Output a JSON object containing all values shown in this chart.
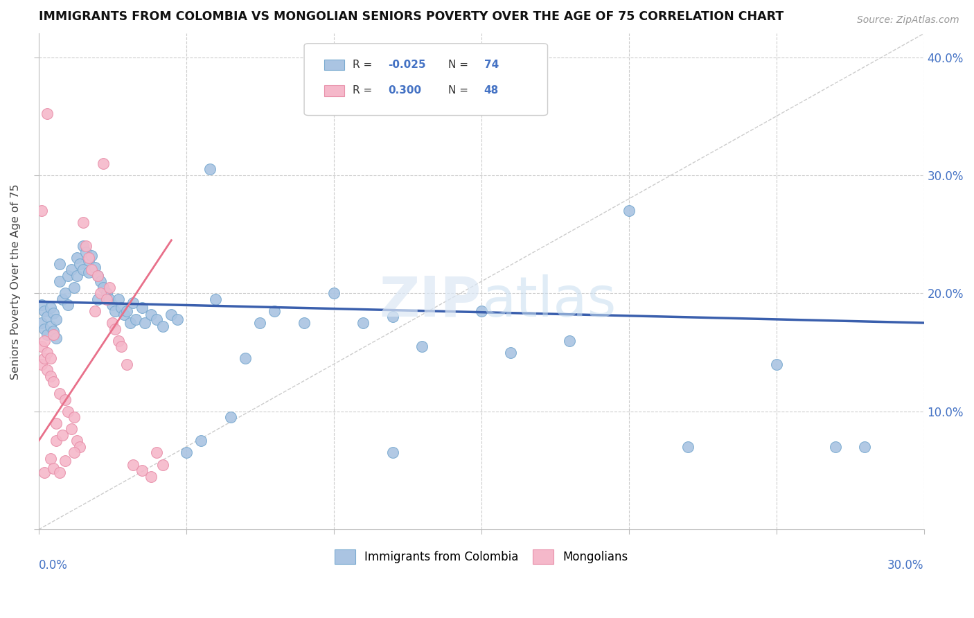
{
  "title": "IMMIGRANTS FROM COLOMBIA VS MONGOLIAN SENIORS POVERTY OVER THE AGE OF 75 CORRELATION CHART",
  "source": "Source: ZipAtlas.com",
  "ylabel": "Seniors Poverty Over the Age of 75",
  "legend1_label": "Immigrants from Colombia",
  "legend2_label": "Mongolians",
  "color_colombia": "#aac4e2",
  "color_mongolia": "#f5b8ca",
  "color_colombia_edge": "#7aaad0",
  "color_mongolia_edge": "#e890aa",
  "color_colombia_line": "#3a5fad",
  "color_mongolia_line": "#e8708a",
  "xlim": [
    0.0,
    0.3
  ],
  "ylim": [
    0.0,
    0.42
  ],
  "colombia_x": [
    0.001,
    0.001,
    0.002,
    0.002,
    0.003,
    0.003,
    0.004,
    0.004,
    0.005,
    0.005,
    0.006,
    0.006,
    0.007,
    0.007,
    0.008,
    0.009,
    0.01,
    0.01,
    0.011,
    0.012,
    0.013,
    0.013,
    0.014,
    0.015,
    0.015,
    0.016,
    0.017,
    0.017,
    0.018,
    0.019,
    0.02,
    0.02,
    0.021,
    0.022,
    0.023,
    0.024,
    0.025,
    0.026,
    0.027,
    0.028,
    0.029,
    0.03,
    0.031,
    0.032,
    0.033,
    0.035,
    0.036,
    0.038,
    0.04,
    0.042,
    0.045,
    0.047,
    0.05,
    0.055,
    0.058,
    0.06,
    0.065,
    0.07,
    0.075,
    0.08,
    0.09,
    0.1,
    0.11,
    0.12,
    0.13,
    0.15,
    0.16,
    0.18,
    0.2,
    0.22,
    0.25,
    0.27,
    0.28,
    0.12
  ],
  "colombia_y": [
    0.19,
    0.175,
    0.185,
    0.17,
    0.18,
    0.165,
    0.188,
    0.172,
    0.183,
    0.168,
    0.178,
    0.162,
    0.225,
    0.21,
    0.195,
    0.2,
    0.215,
    0.19,
    0.22,
    0.205,
    0.23,
    0.215,
    0.225,
    0.24,
    0.22,
    0.235,
    0.228,
    0.218,
    0.232,
    0.222,
    0.215,
    0.195,
    0.21,
    0.205,
    0.2,
    0.195,
    0.19,
    0.185,
    0.195,
    0.188,
    0.182,
    0.185,
    0.175,
    0.192,
    0.178,
    0.188,
    0.175,
    0.182,
    0.178,
    0.172,
    0.182,
    0.178,
    0.065,
    0.075,
    0.305,
    0.195,
    0.095,
    0.145,
    0.175,
    0.185,
    0.175,
    0.2,
    0.175,
    0.18,
    0.155,
    0.185,
    0.15,
    0.16,
    0.27,
    0.07,
    0.14,
    0.07,
    0.07,
    0.065
  ],
  "mongolia_x": [
    0.001,
    0.001,
    0.002,
    0.002,
    0.003,
    0.003,
    0.004,
    0.004,
    0.005,
    0.005,
    0.006,
    0.006,
    0.007,
    0.008,
    0.009,
    0.01,
    0.011,
    0.012,
    0.013,
    0.014,
    0.015,
    0.016,
    0.017,
    0.018,
    0.019,
    0.02,
    0.021,
    0.022,
    0.023,
    0.024,
    0.025,
    0.026,
    0.027,
    0.028,
    0.03,
    0.032,
    0.035,
    0.038,
    0.04,
    0.042,
    0.001,
    0.002,
    0.003,
    0.004,
    0.005,
    0.007,
    0.009,
    0.012
  ],
  "mongolia_y": [
    0.155,
    0.14,
    0.16,
    0.145,
    0.15,
    0.135,
    0.145,
    0.13,
    0.165,
    0.125,
    0.09,
    0.075,
    0.115,
    0.08,
    0.11,
    0.1,
    0.085,
    0.095,
    0.075,
    0.07,
    0.26,
    0.24,
    0.23,
    0.22,
    0.185,
    0.215,
    0.2,
    0.31,
    0.195,
    0.205,
    0.175,
    0.17,
    0.16,
    0.155,
    0.14,
    0.055,
    0.05,
    0.045,
    0.065,
    0.055,
    0.27,
    0.048,
    0.352,
    0.06,
    0.052,
    0.048,
    0.058,
    0.065
  ],
  "col_line_x": [
    0.0,
    0.3
  ],
  "col_line_y": [
    0.193,
    0.175
  ],
  "mon_line_x": [
    0.0,
    0.045
  ],
  "mon_line_y": [
    0.075,
    0.245
  ]
}
